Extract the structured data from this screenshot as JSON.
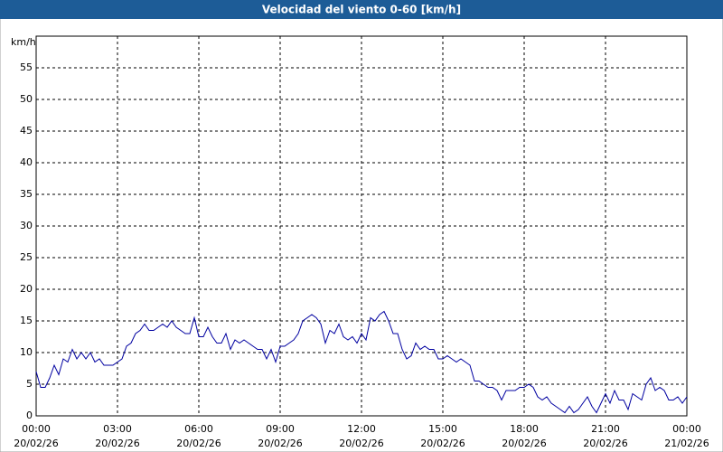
{
  "chart_data": {
    "type": "line",
    "title": "Velocidad del viento 0-60 [km/h]",
    "y_label": "km/h",
    "x": [
      0,
      10,
      20,
      30,
      40,
      50,
      60,
      70,
      80,
      90,
      100,
      110,
      120,
      130,
      140,
      150,
      160,
      170,
      180,
      190,
      200,
      210,
      220,
      230,
      240,
      250,
      260,
      270,
      280,
      290,
      300,
      310,
      320,
      330,
      340,
      350,
      360,
      370,
      380,
      390,
      400,
      410,
      420,
      430,
      440,
      450,
      460,
      470,
      480,
      490,
      500,
      510,
      520,
      530,
      540,
      550,
      560,
      570,
      580,
      590,
      600,
      610,
      620,
      630,
      640,
      650,
      660,
      670,
      680,
      690,
      700,
      710,
      720,
      730,
      740,
      750,
      760,
      770,
      780,
      790,
      800,
      810,
      820,
      830,
      840,
      850,
      860,
      870,
      880,
      890,
      900,
      910,
      920,
      930,
      940,
      950,
      960,
      970,
      980,
      990,
      1000,
      1010,
      1020,
      1030,
      1040,
      1050,
      1060,
      1070,
      1080,
      1090,
      1100,
      1110,
      1120,
      1130,
      1140,
      1150,
      1160,
      1170,
      1180,
      1190,
      1200,
      1210,
      1220,
      1230,
      1240,
      1250,
      1260,
      1270,
      1280,
      1290,
      1300,
      1310,
      1320,
      1330,
      1340,
      1350,
      1360,
      1370,
      1380,
      1390,
      1400,
      1410,
      1420,
      1430,
      1440
    ],
    "series": [
      {
        "name": "Velocidad del viento",
        "color": "#0000a0",
        "values": [
          7,
          4.5,
          4.5,
          6,
          8,
          6.5,
          9,
          8.5,
          10.5,
          9,
          10,
          9,
          10,
          8.5,
          9,
          8,
          8,
          8,
          8.5,
          9,
          11,
          11.5,
          13,
          13.5,
          14.5,
          13.5,
          13.5,
          14,
          14.5,
          14,
          15,
          14,
          13.5,
          13,
          13,
          15.5,
          12.5,
          12.5,
          14,
          12.5,
          11.5,
          11.5,
          13,
          10.5,
          12,
          11.5,
          12,
          11.5,
          11,
          10.5,
          10.5,
          9,
          10.5,
          8.5,
          11,
          11,
          11.5,
          12,
          13,
          15,
          15.5,
          16,
          15.5,
          14.5,
          11.5,
          13.5,
          13,
          14.5,
          12.5,
          12,
          12.5,
          11.5,
          13,
          12,
          15.5,
          15,
          16,
          16.5,
          15,
          13,
          13,
          10.5,
          9,
          9.5,
          11.5,
          10.5,
          11,
          10.5,
          10.5,
          9,
          9,
          9.5,
          9,
          8.5,
          9,
          8.5,
          8,
          5.5,
          5.5,
          5,
          4.5,
          4.5,
          4,
          2.5,
          4,
          4,
          4,
          4.5,
          4.5,
          5,
          4.5,
          3,
          2.5,
          3,
          2,
          1.5,
          1,
          0.5,
          1.5,
          0.5,
          1,
          2,
          3,
          1.5,
          0.5,
          2,
          3.5,
          2,
          4,
          2.5,
          2.5,
          1,
          3.5,
          3,
          2.5,
          5,
          6,
          4,
          4.5,
          4,
          2.5,
          2.5,
          3,
          2,
          3
        ]
      }
    ],
    "xlim": [
      0,
      1440
    ],
    "xticks": [
      {
        "value": 0,
        "label": "00:00",
        "date": "20/02/26"
      },
      {
        "value": 180,
        "label": "03:00",
        "date": "20/02/26"
      },
      {
        "value": 360,
        "label": "06:00",
        "date": "20/02/26"
      },
      {
        "value": 540,
        "label": "09:00",
        "date": "20/02/26"
      },
      {
        "value": 720,
        "label": "12:00",
        "date": "20/02/26"
      },
      {
        "value": 900,
        "label": "15:00",
        "date": "20/02/26"
      },
      {
        "value": 1080,
        "label": "18:00",
        "date": "20/02/26"
      },
      {
        "value": 1260,
        "label": "21:00",
        "date": "20/02/26"
      },
      {
        "value": 1440,
        "label": "00:00",
        "date": "21/02/26"
      }
    ],
    "ylim": [
      0,
      60
    ],
    "yticks": [
      0,
      5,
      10,
      15,
      20,
      25,
      30,
      35,
      40,
      45,
      50,
      55
    ],
    "grid": true
  }
}
